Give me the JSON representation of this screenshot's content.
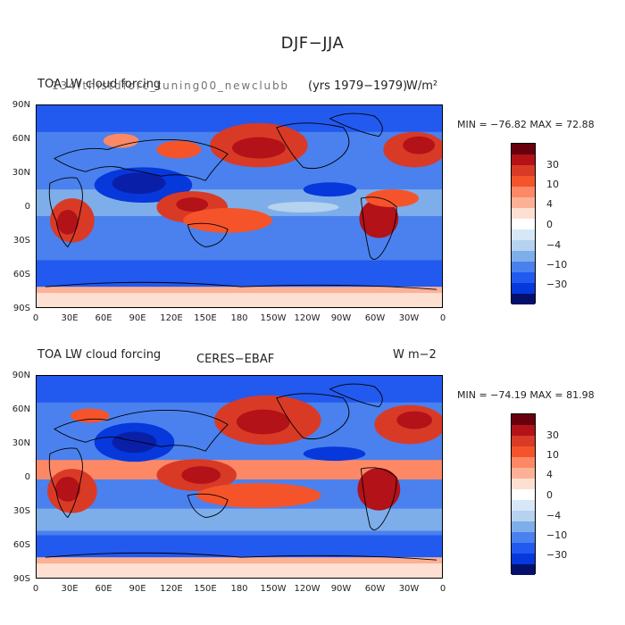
{
  "title": "DJF−JJA",
  "colors": [
    "#68000d",
    "#b21218",
    "#d93a26",
    "#f5542a",
    "#fc8866",
    "#fcb196",
    "#fee0d2",
    "#ffffff",
    "#d6e8f8",
    "#b5d2ee",
    "#7eaeea",
    "#4a81ee",
    "#2259ef",
    "#0638db",
    "#0a1fa8",
    "#05106a"
  ],
  "colorbar_labels": [
    "30",
    "10",
    "4",
    "0",
    "−4",
    "−10",
    "−30"
  ],
  "lat_labels": [
    "90N",
    "60N",
    "30N",
    "0",
    "30S",
    "60S",
    "90S"
  ],
  "lon_labels": [
    "0",
    "30E",
    "60E",
    "90E",
    "120E",
    "150E",
    "180",
    "150W",
    "120W",
    "90W",
    "60W",
    "30W",
    "0"
  ],
  "panels": [
    {
      "left_text": "TOA LW cloud forcing",
      "overlap_text": "1 3 4 f t h i s t d f o r c _ t u n i n g 0 0 _ n e w c l u b b",
      "center_text": "(yrs 1979−1979)",
      "units": "W/m²",
      "min_max": "MIN = −76.82  MAX =  72.88",
      "source": "model"
    },
    {
      "left_text": "TOA LW cloud forcing",
      "center_text": "CERES−EBAF",
      "units": "W m−2",
      "min_max": "MIN = −74.19  MAX =  81.98",
      "source": "observation"
    }
  ]
}
